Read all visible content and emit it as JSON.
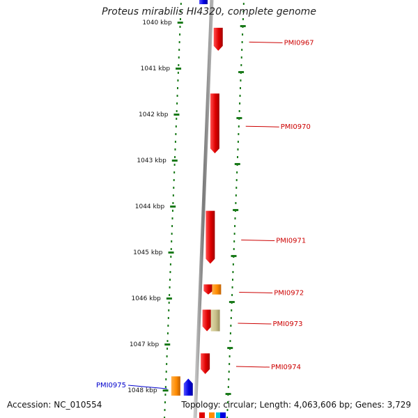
{
  "title": "Proteus mirabilis HI4320, complete genome",
  "accession": "Accession: NC_010554",
  "topology": "Topology: circular; Length: 4,063,606 bp; Genes: 3,729",
  "colors": {
    "backbone": "#8a8a8a",
    "tick": "#1a7a1a",
    "gene_forward": "#ee0000",
    "gene_reverse": "#0000ee",
    "label_red": "#cc0000",
    "label_blue": "#0000cc",
    "gene_orange": "#ff8c00",
    "gene_khaki": "#c8c08a"
  },
  "axis": {
    "unit": "kbp",
    "ticks": [
      {
        "value": 1040,
        "label": "1040 kbp"
      },
      {
        "value": 1041,
        "label": "1041 kbp"
      },
      {
        "value": 1042,
        "label": "1042 kbp"
      },
      {
        "value": 1043,
        "label": "1043 kbp"
      },
      {
        "value": 1044,
        "label": "1044 kbp"
      },
      {
        "value": 1045,
        "label": "1045 kbp"
      },
      {
        "value": 1046,
        "label": "1046 kbp"
      },
      {
        "value": 1047,
        "label": "1047 kbp"
      },
      {
        "value": 1048,
        "label": "1048 kbp"
      }
    ]
  },
  "genes": [
    {
      "name": "PMI0967",
      "start": 1040.12,
      "end": 1040.62,
      "strand": "+",
      "color": "red",
      "labeled": true
    },
    {
      "name": "PMI0970",
      "start": 1041.55,
      "end": 1042.85,
      "strand": "+",
      "color": "red",
      "labeled": true
    },
    {
      "name": "PMI0971",
      "start": 1044.1,
      "end": 1045.25,
      "strand": "+",
      "color": "red",
      "labeled": true
    },
    {
      "name": "PMI0972",
      "start": 1045.7,
      "end": 1045.92,
      "strand": "+",
      "color": "red",
      "labeled": true
    },
    {
      "name": "",
      "start": 1045.7,
      "end": 1045.92,
      "strand": "-",
      "color": "orange",
      "labeled": false
    },
    {
      "name": "PMI0973",
      "start": 1046.25,
      "end": 1046.72,
      "strand": "+",
      "color": "red",
      "labeled": true
    },
    {
      "name": "",
      "start": 1046.25,
      "end": 1046.72,
      "strand": "-",
      "color": "khaki",
      "labeled": false
    },
    {
      "name": "PMI0974",
      "start": 1047.2,
      "end": 1047.65,
      "strand": "+",
      "color": "red",
      "labeled": true
    },
    {
      "name": "PMI0975",
      "start": 1047.7,
      "end": 1048.12,
      "strand": "-",
      "color": "orange",
      "labeled": true
    },
    {
      "name": "",
      "start": 1047.75,
      "end": 1048.12,
      "strand": "-",
      "color": "blue",
      "labeled": false
    }
  ]
}
